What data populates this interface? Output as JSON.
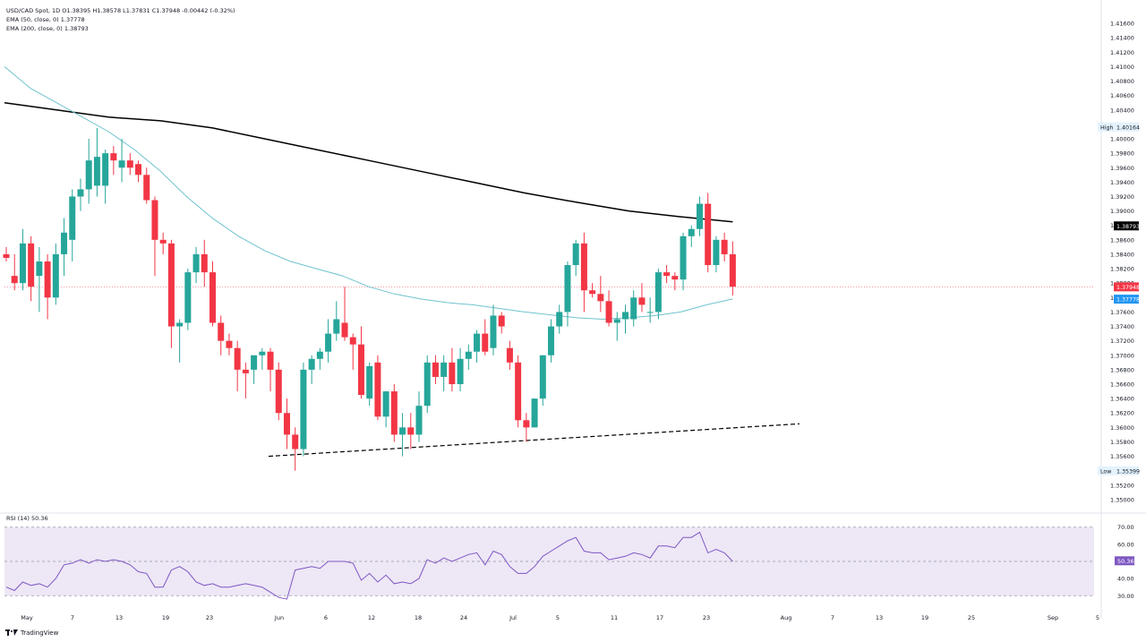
{
  "legend": {
    "main": "USD/CAD Spot, 1D  O1.38395  H1.38578  L1.37831  C1.37948  -0.00442 (-0.32%)",
    "ema50": "EMA (50, close, 0)  1.37778",
    "ema200": "EMA (200, close, 0)  1.38793",
    "rsi": "RSI (14)  50.36"
  },
  "footer": {
    "brand": "TradingView"
  },
  "colors": {
    "up": "#26a69a",
    "down": "#f23645",
    "ema50": "#6fc3cf",
    "ema200": "#000000",
    "rsi": "#7e57c2",
    "rsi_band": "#ede7f6"
  },
  "chart_data": {
    "type": "candlestick",
    "title": "USD/CAD Spot, 1D",
    "price_axis": {
      "ticks": [
        "1.41600",
        "1.41400",
        "1.41200",
        "1.41000",
        "1.40800",
        "1.40600",
        "1.40400",
        "1.40200",
        "1.40000",
        "1.39800",
        "1.39600",
        "1.39400",
        "1.39200",
        "1.39000",
        "1.38800",
        "1.38600",
        "1.38400",
        "1.38200",
        "1.38000",
        "1.37800",
        "1.37600",
        "1.37400",
        "1.37200",
        "1.37000",
        "1.36800",
        "1.36600",
        "1.36400",
        "1.36200",
        "1.36000",
        "1.35800",
        "1.35600",
        "1.35400",
        "1.35200",
        "1.35000"
      ],
      "range": [
        1.349,
        1.4175
      ]
    },
    "time_axis": [
      "May",
      "7",
      "13",
      "19",
      "23",
      "Jun",
      "6",
      "12",
      "18",
      "24",
      "Jul",
      "5",
      "11",
      "17",
      "23",
      "Aug",
      "7",
      "13",
      "19",
      "25",
      "Sep",
      "5"
    ],
    "price_labels": [
      {
        "text": "High",
        "value": "1.40164",
        "price": 1.40164
      },
      {
        "text": "",
        "value": "1.38793",
        "price": 1.38793
      },
      {
        "text": "",
        "value": "1.37948",
        "price": 1.37948
      },
      {
        "text": "",
        "value": "1.37778",
        "price": 1.37778
      },
      {
        "text": "Low",
        "value": "1.35399",
        "price": 1.35399
      }
    ],
    "candles": [
      [
        1.384,
        1.385,
        1.383,
        1.3835
      ],
      [
        1.381,
        1.384,
        1.379,
        1.38
      ],
      [
        1.38,
        1.3875,
        1.379,
        1.3855
      ],
      [
        1.3855,
        1.3865,
        1.3775,
        1.3795
      ],
      [
        1.381,
        1.385,
        1.376,
        1.383
      ],
      [
        1.383,
        1.384,
        1.375,
        1.378
      ],
      [
        1.378,
        1.3855,
        1.377,
        1.384
      ],
      [
        1.384,
        1.389,
        1.381,
        1.387
      ],
      [
        1.386,
        1.393,
        1.383,
        1.392
      ],
      [
        1.392,
        1.3945,
        1.39,
        1.393
      ],
      [
        1.393,
        1.4,
        1.391,
        1.397
      ],
      [
        1.3935,
        1.4015,
        1.392,
        1.3975
      ],
      [
        1.3935,
        1.3985,
        1.391,
        1.398
      ],
      [
        1.398,
        1.399,
        1.395,
        1.397
      ],
      [
        1.396,
        1.4,
        1.394,
        1.397
      ],
      [
        1.397,
        1.398,
        1.395,
        1.396
      ],
      [
        1.3965,
        1.397,
        1.394,
        1.395
      ],
      [
        1.395,
        1.396,
        1.391,
        1.3915
      ],
      [
        1.3915,
        1.392,
        1.381,
        1.386
      ],
      [
        1.386,
        1.387,
        1.384,
        1.3855
      ],
      [
        1.3855,
        1.386,
        1.371,
        1.374
      ],
      [
        1.374,
        1.375,
        1.369,
        1.3745
      ],
      [
        1.3745,
        1.382,
        1.3735,
        1.3815
      ],
      [
        1.3815,
        1.385,
        1.38,
        1.384
      ],
      [
        1.384,
        1.386,
        1.3795,
        1.3815
      ],
      [
        1.3815,
        1.383,
        1.374,
        1.3745
      ],
      [
        1.3745,
        1.3755,
        1.37,
        1.372
      ],
      [
        1.372,
        1.373,
        1.37,
        1.371
      ],
      [
        1.371,
        1.372,
        1.365,
        1.368
      ],
      [
        1.368,
        1.369,
        1.364,
        1.3675
      ],
      [
        1.368,
        1.37,
        1.366,
        1.37
      ],
      [
        1.37,
        1.371,
        1.368,
        1.3705
      ],
      [
        1.3705,
        1.371,
        1.365,
        1.368
      ],
      [
        1.368,
        1.369,
        1.361,
        1.362
      ],
      [
        1.362,
        1.364,
        1.357,
        1.359
      ],
      [
        1.359,
        1.36,
        1.354,
        1.357
      ],
      [
        1.357,
        1.369,
        1.356,
        1.368
      ],
      [
        1.368,
        1.37,
        1.366,
        1.3695
      ],
      [
        1.3695,
        1.371,
        1.368,
        1.3705
      ],
      [
        1.3705,
        1.375,
        1.369,
        1.373
      ],
      [
        1.373,
        1.3775,
        1.372,
        1.375
      ],
      [
        1.3745,
        1.3795,
        1.372,
        1.3725
      ],
      [
        1.3725,
        1.373,
        1.368,
        1.3715
      ],
      [
        1.3715,
        1.374,
        1.364,
        1.3645
      ],
      [
        1.364,
        1.369,
        1.363,
        1.3685
      ],
      [
        1.369,
        1.37,
        1.361,
        1.3615
      ],
      [
        1.3615,
        1.365,
        1.36,
        1.365
      ],
      [
        1.365,
        1.366,
        1.358,
        1.359
      ],
      [
        1.359,
        1.362,
        1.356,
        1.36
      ],
      [
        1.36,
        1.362,
        1.357,
        1.359
      ],
      [
        1.359,
        1.365,
        1.358,
        1.363
      ],
      [
        1.363,
        1.37,
        1.362,
        1.369
      ],
      [
        1.369,
        1.37,
        1.366,
        1.367
      ],
      [
        1.367,
        1.37,
        1.365,
        1.369
      ],
      [
        1.369,
        1.371,
        1.365,
        1.366
      ],
      [
        1.366,
        1.371,
        1.365,
        1.3695
      ],
      [
        1.3695,
        1.3715,
        1.368,
        1.3705
      ],
      [
        1.3705,
        1.3735,
        1.369,
        1.373
      ],
      [
        1.373,
        1.375,
        1.37,
        1.3705
      ],
      [
        1.371,
        1.377,
        1.37,
        1.3755
      ],
      [
        1.3755,
        1.376,
        1.373,
        1.374
      ],
      [
        1.371,
        1.372,
        1.368,
        1.369
      ],
      [
        1.369,
        1.37,
        1.36,
        1.361
      ],
      [
        1.361,
        1.362,
        1.358,
        1.36
      ],
      [
        1.36,
        1.364,
        1.36,
        1.364
      ],
      [
        1.364,
        1.37,
        1.363,
        1.37
      ],
      [
        1.37,
        1.375,
        1.369,
        1.374
      ],
      [
        1.374,
        1.377,
        1.373,
        1.376
      ],
      [
        1.376,
        1.383,
        1.374,
        1.3825
      ],
      [
        1.3825,
        1.386,
        1.381,
        1.3855
      ],
      [
        1.3855,
        1.387,
        1.376,
        1.379
      ],
      [
        1.379,
        1.38,
        1.378,
        1.3785
      ],
      [
        1.3785,
        1.381,
        1.376,
        1.3775
      ],
      [
        1.3775,
        1.379,
        1.374,
        1.3745
      ],
      [
        1.3745,
        1.376,
        1.372,
        1.375
      ],
      [
        1.375,
        1.377,
        1.373,
        1.376
      ],
      [
        1.375,
        1.379,
        1.374,
        1.378
      ],
      [
        1.378,
        1.38,
        1.376,
        1.377
      ],
      [
        1.376,
        1.378,
        1.3745,
        1.376
      ],
      [
        1.376,
        1.382,
        1.375,
        1.3815
      ],
      [
        1.3815,
        1.3825,
        1.38,
        1.381
      ],
      [
        1.381,
        1.3815,
        1.379,
        1.3805
      ],
      [
        1.3805,
        1.387,
        1.379,
        1.3865
      ],
      [
        1.3865,
        1.388,
        1.385,
        1.3875
      ],
      [
        1.3875,
        1.392,
        1.3865,
        1.391
      ],
      [
        1.391,
        1.3925,
        1.3815,
        1.3825
      ],
      [
        1.3825,
        1.3865,
        1.3815,
        1.386
      ],
      [
        1.386,
        1.387,
        1.383,
        1.384
      ],
      [
        1.384,
        1.3858,
        1.3783,
        1.3795
      ]
    ],
    "ema50": [
      [
        0,
        1.41
      ],
      [
        8,
        1.407
      ],
      [
        16,
        1.405
      ],
      [
        24,
        1.403
      ],
      [
        32,
        1.401
      ],
      [
        40,
        1.3985
      ],
      [
        48,
        1.3955
      ],
      [
        56,
        1.392
      ],
      [
        64,
        1.389
      ],
      [
        72,
        1.3865
      ],
      [
        80,
        1.3845
      ],
      [
        88,
        1.383
      ],
      [
        96,
        1.382
      ],
      [
        104,
        1.381
      ],
      [
        112,
        1.3795
      ],
      [
        120,
        1.3785
      ],
      [
        128,
        1.3778
      ],
      [
        136,
        1.3773
      ],
      [
        144,
        1.377
      ],
      [
        152,
        1.3765
      ],
      [
        160,
        1.376
      ],
      [
        168,
        1.3756
      ],
      [
        176,
        1.3752
      ],
      [
        184,
        1.375
      ],
      [
        192,
        1.3752
      ],
      [
        200,
        1.3755
      ],
      [
        208,
        1.376
      ],
      [
        216,
        1.377
      ],
      [
        224,
        1.3778
      ]
    ],
    "ema200": [
      [
        0,
        1.405
      ],
      [
        16,
        1.404
      ],
      [
        32,
        1.403
      ],
      [
        48,
        1.4025
      ],
      [
        64,
        1.4015
      ],
      [
        80,
        1.4
      ],
      [
        96,
        1.3985
      ],
      [
        112,
        1.397
      ],
      [
        128,
        1.3955
      ],
      [
        144,
        1.394
      ],
      [
        160,
        1.3925
      ],
      [
        176,
        1.3912
      ],
      [
        192,
        1.39
      ],
      [
        208,
        1.3892
      ],
      [
        224,
        1.3885
      ]
    ],
    "trendline": {
      "from": [
        1.356
      ],
      "to": [
        1.3605
      ],
      "style": "dashed"
    },
    "rsi": {
      "ticks": [
        "70.00",
        "60.00",
        "50.00",
        "40.00",
        "30.00"
      ],
      "range": [
        27,
        73
      ],
      "overbought": 70,
      "oversold": 30,
      "mid": 50,
      "value": "50.36",
      "values": [
        35,
        33,
        38,
        36,
        37,
        35,
        40,
        48,
        49,
        51,
        49,
        51,
        50,
        51,
        50,
        48,
        44,
        43,
        35,
        35,
        45,
        47,
        44,
        38,
        36,
        37,
        35,
        35,
        36,
        37,
        36,
        35,
        32,
        29,
        28,
        45,
        46,
        47,
        46,
        50,
        50,
        50,
        49,
        39,
        43,
        38,
        42,
        37,
        38,
        37,
        40,
        51,
        49,
        52,
        50,
        52,
        54,
        55,
        48,
        56,
        54,
        47,
        43,
        43,
        47,
        53,
        56,
        59,
        62,
        64,
        56,
        55,
        55,
        51,
        52,
        53,
        55,
        54,
        52,
        59,
        59,
        58,
        64,
        64,
        67,
        55,
        57,
        55,
        50
      ]
    }
  }
}
